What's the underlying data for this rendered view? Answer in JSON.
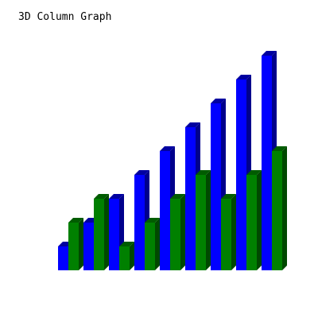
{
  "chart_data": {
    "type": "bar",
    "title": "3D Column Graph",
    "style": "3d-columns",
    "grid": false,
    "legend": "none",
    "categories": [
      "",
      "",
      "",
      "",
      "",
      "",
      "",
      "",
      ""
    ],
    "series": [
      {
        "values": [
          1,
          2,
          3,
          4,
          5,
          6,
          7,
          8,
          9
        ],
        "color": "#0000ff",
        "side_color": "#00008c",
        "top_color": "#0000a0"
      },
      {
        "values": [
          2,
          3,
          1,
          2,
          3,
          4,
          3,
          4,
          5
        ],
        "color": "#008000",
        "side_color": "#004800",
        "top_color": "#005c00"
      }
    ],
    "ylim": [
      0,
      9
    ]
  }
}
